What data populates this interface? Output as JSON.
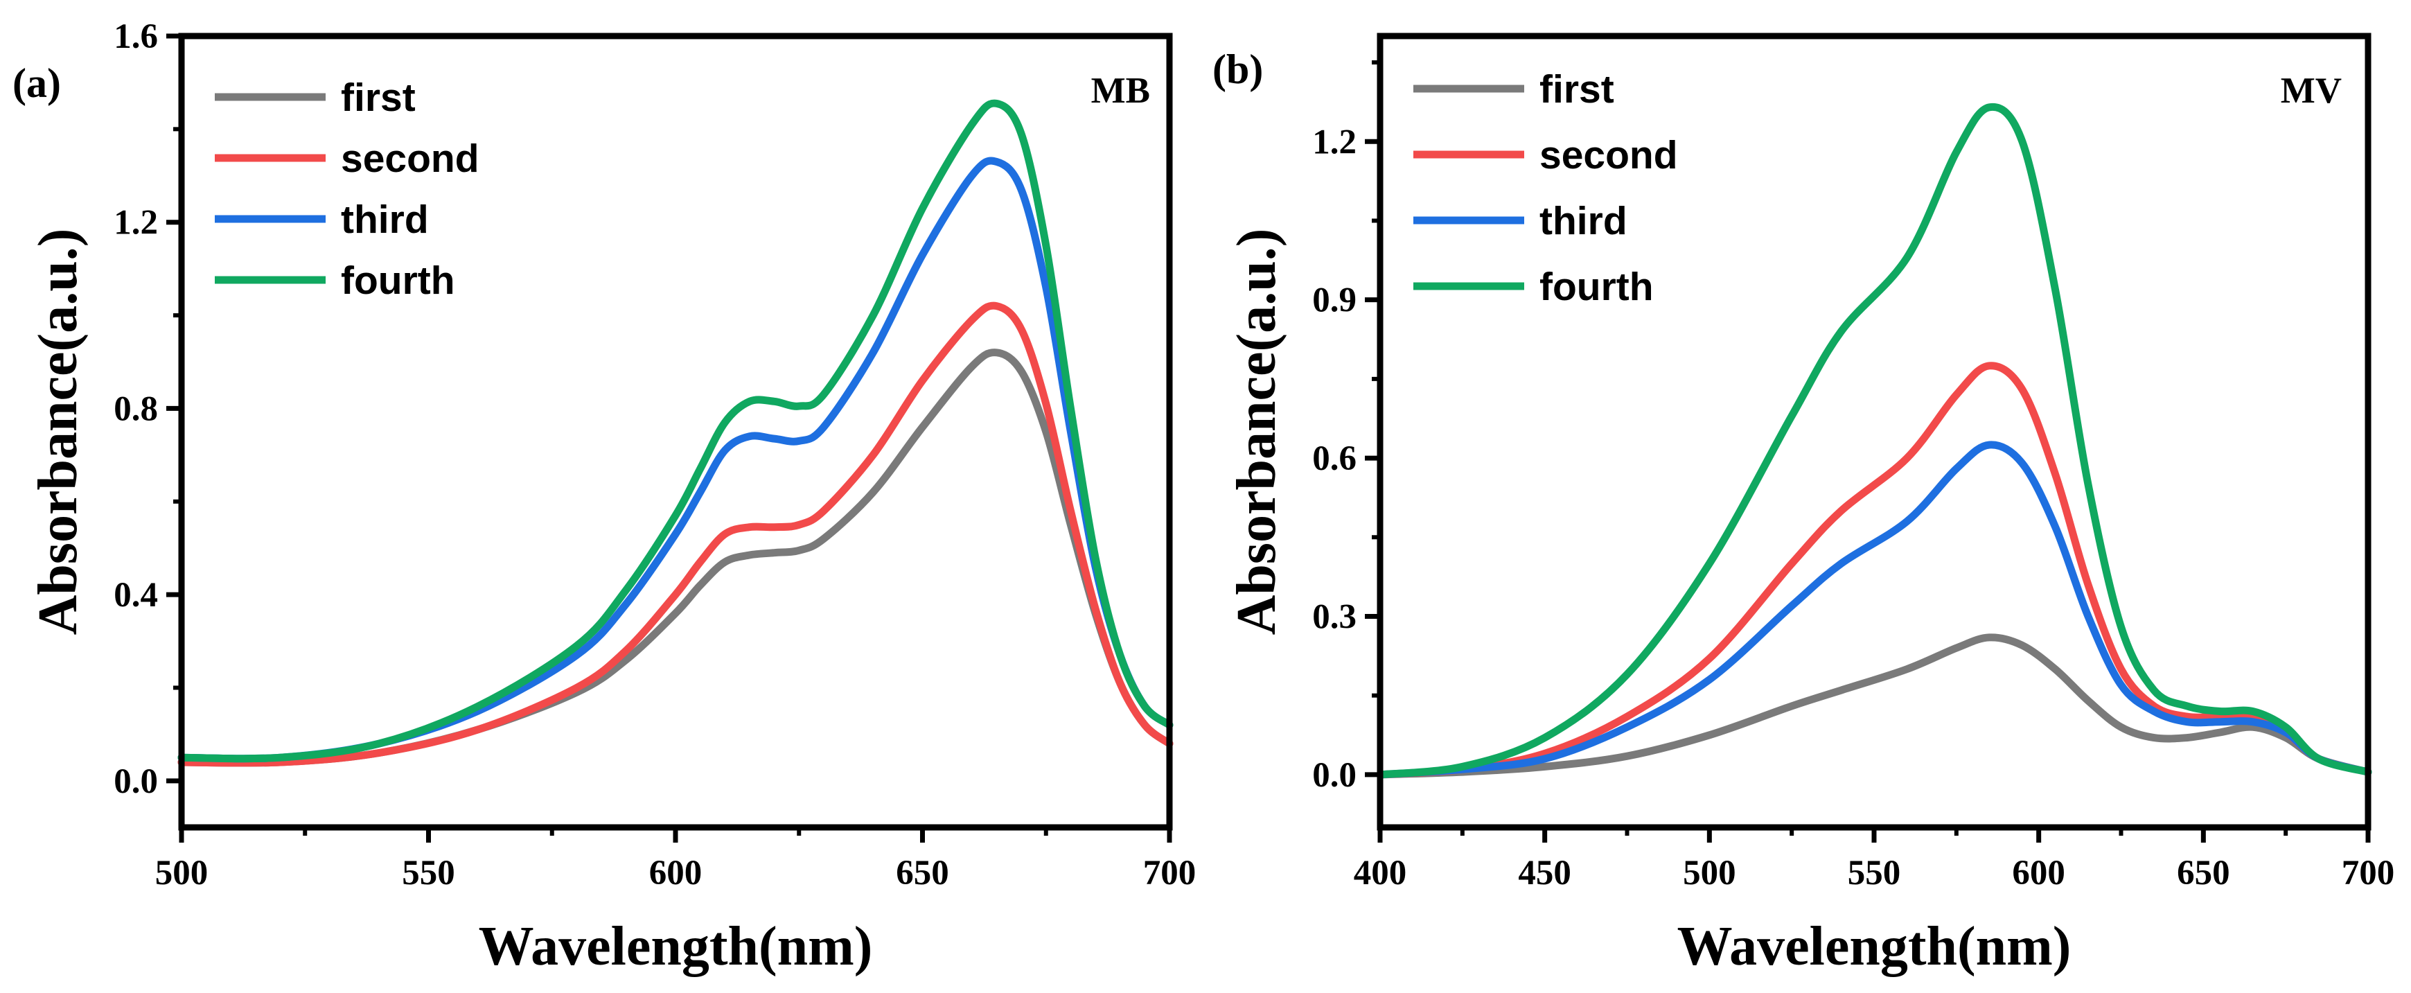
{
  "chart_data": [
    {
      "type": "line",
      "panel_label": "(a)",
      "tag": "MB",
      "xlabel": "Wavelength(nm)",
      "ylabel": "Absorbance(a.u.)",
      "xlim": [
        500,
        700
      ],
      "ylim": [
        -0.1,
        1.6
      ],
      "xticks": [
        500,
        550,
        600,
        650,
        700
      ],
      "yticks": [
        0.0,
        0.4,
        0.8,
        1.2,
        1.6
      ],
      "xtick_labels": [
        "500",
        "550",
        "600",
        "650",
        "700"
      ],
      "ytick_labels": [
        "0.0",
        "0.4",
        "0.8",
        "1.2",
        "1.6"
      ],
      "legend": "top-left",
      "grid": false,
      "series": [
        {
          "name": "first",
          "color": "#7a7a7a",
          "x": [
            500,
            520,
            540,
            560,
            580,
            590,
            600,
            605,
            610,
            615,
            620,
            625,
            630,
            640,
            650,
            660,
            665,
            670,
            675,
            680,
            685,
            690,
            695,
            700
          ],
          "y": [
            0.04,
            0.04,
            0.06,
            0.11,
            0.19,
            0.26,
            0.36,
            0.42,
            0.47,
            0.485,
            0.49,
            0.495,
            0.52,
            0.62,
            0.76,
            0.89,
            0.92,
            0.88,
            0.75,
            0.55,
            0.36,
            0.21,
            0.12,
            0.08
          ]
        },
        {
          "name": "second",
          "color": "#f24a4a",
          "x": [
            500,
            520,
            540,
            560,
            580,
            590,
            600,
            605,
            610,
            615,
            620,
            625,
            630,
            640,
            650,
            660,
            665,
            670,
            675,
            680,
            685,
            690,
            695,
            700
          ],
          "y": [
            0.04,
            0.04,
            0.06,
            0.11,
            0.2,
            0.28,
            0.4,
            0.47,
            0.53,
            0.545,
            0.545,
            0.55,
            0.58,
            0.7,
            0.86,
            0.99,
            1.02,
            0.97,
            0.81,
            0.58,
            0.37,
            0.21,
            0.12,
            0.08
          ]
        },
        {
          "name": "third",
          "color": "#1e6fe0",
          "x": [
            500,
            520,
            540,
            560,
            580,
            590,
            600,
            605,
            610,
            615,
            620,
            625,
            630,
            640,
            650,
            660,
            665,
            670,
            675,
            680,
            685,
            690,
            695,
            700
          ],
          "y": [
            0.05,
            0.05,
            0.08,
            0.15,
            0.27,
            0.38,
            0.53,
            0.62,
            0.71,
            0.74,
            0.735,
            0.73,
            0.76,
            0.92,
            1.13,
            1.3,
            1.33,
            1.27,
            1.06,
            0.75,
            0.46,
            0.27,
            0.16,
            0.12
          ]
        },
        {
          "name": "fourth",
          "color": "#10a860",
          "x": [
            500,
            520,
            540,
            560,
            580,
            590,
            600,
            605,
            610,
            615,
            620,
            625,
            630,
            640,
            650,
            660,
            665,
            670,
            675,
            680,
            685,
            690,
            695,
            700
          ],
          "y": [
            0.05,
            0.05,
            0.08,
            0.16,
            0.29,
            0.41,
            0.57,
            0.67,
            0.77,
            0.815,
            0.815,
            0.805,
            0.83,
            1.0,
            1.23,
            1.41,
            1.455,
            1.39,
            1.15,
            0.8,
            0.48,
            0.27,
            0.16,
            0.12
          ]
        }
      ]
    },
    {
      "type": "line",
      "panel_label": "(b)",
      "tag": "MV",
      "xlabel": "Wavelength(nm)",
      "ylabel": "Absorbance(a.u.)",
      "xlim": [
        400,
        700
      ],
      "ylim": [
        -0.1,
        1.4
      ],
      "xticks": [
        400,
        450,
        500,
        550,
        600,
        650,
        700
      ],
      "yticks": [
        0.0,
        0.3,
        0.6,
        0.9,
        1.2
      ],
      "xtick_labels": [
        "400",
        "450",
        "500",
        "550",
        "600",
        "650",
        "700"
      ],
      "ytick_labels": [
        "0.0",
        "0.3",
        "0.6",
        "0.9",
        "1.2"
      ],
      "legend": "top-left",
      "grid": false,
      "series": [
        {
          "name": "first",
          "color": "#7a7a7a",
          "x": [
            400,
            425,
            450,
            475,
            500,
            525,
            540,
            560,
            575,
            585,
            595,
            605,
            615,
            625,
            635,
            645,
            655,
            665,
            675,
            685,
            700
          ],
          "y": [
            0.0,
            0.005,
            0.015,
            0.035,
            0.075,
            0.13,
            0.16,
            0.2,
            0.24,
            0.26,
            0.245,
            0.2,
            0.14,
            0.09,
            0.07,
            0.07,
            0.08,
            0.09,
            0.07,
            0.03,
            0.005
          ]
        },
        {
          "name": "second",
          "color": "#f24a4a",
          "x": [
            400,
            425,
            450,
            475,
            500,
            525,
            540,
            560,
            575,
            585,
            595,
            605,
            615,
            625,
            635,
            645,
            655,
            665,
            675,
            685,
            700
          ],
          "y": [
            0.0,
            0.01,
            0.04,
            0.11,
            0.22,
            0.4,
            0.5,
            0.6,
            0.72,
            0.775,
            0.73,
            0.57,
            0.36,
            0.2,
            0.13,
            0.11,
            0.11,
            0.11,
            0.08,
            0.03,
            0.005
          ]
        },
        {
          "name": "third",
          "color": "#1e6fe0",
          "x": [
            400,
            425,
            450,
            475,
            500,
            525,
            540,
            560,
            575,
            585,
            595,
            605,
            615,
            625,
            635,
            645,
            655,
            665,
            675,
            685,
            700
          ],
          "y": [
            0.0,
            0.01,
            0.03,
            0.09,
            0.18,
            0.32,
            0.4,
            0.48,
            0.58,
            0.625,
            0.59,
            0.47,
            0.3,
            0.17,
            0.12,
            0.1,
            0.1,
            0.1,
            0.08,
            0.03,
            0.005
          ]
        },
        {
          "name": "fourth",
          "color": "#10a860",
          "x": [
            400,
            425,
            450,
            475,
            500,
            525,
            540,
            560,
            575,
            585,
            595,
            605,
            615,
            625,
            635,
            645,
            655,
            665,
            675,
            685,
            700
          ],
          "y": [
            0.0,
            0.015,
            0.07,
            0.19,
            0.4,
            0.68,
            0.84,
            0.98,
            1.18,
            1.265,
            1.2,
            0.92,
            0.55,
            0.28,
            0.16,
            0.13,
            0.12,
            0.12,
            0.09,
            0.03,
            0.005
          ]
        }
      ]
    }
  ]
}
